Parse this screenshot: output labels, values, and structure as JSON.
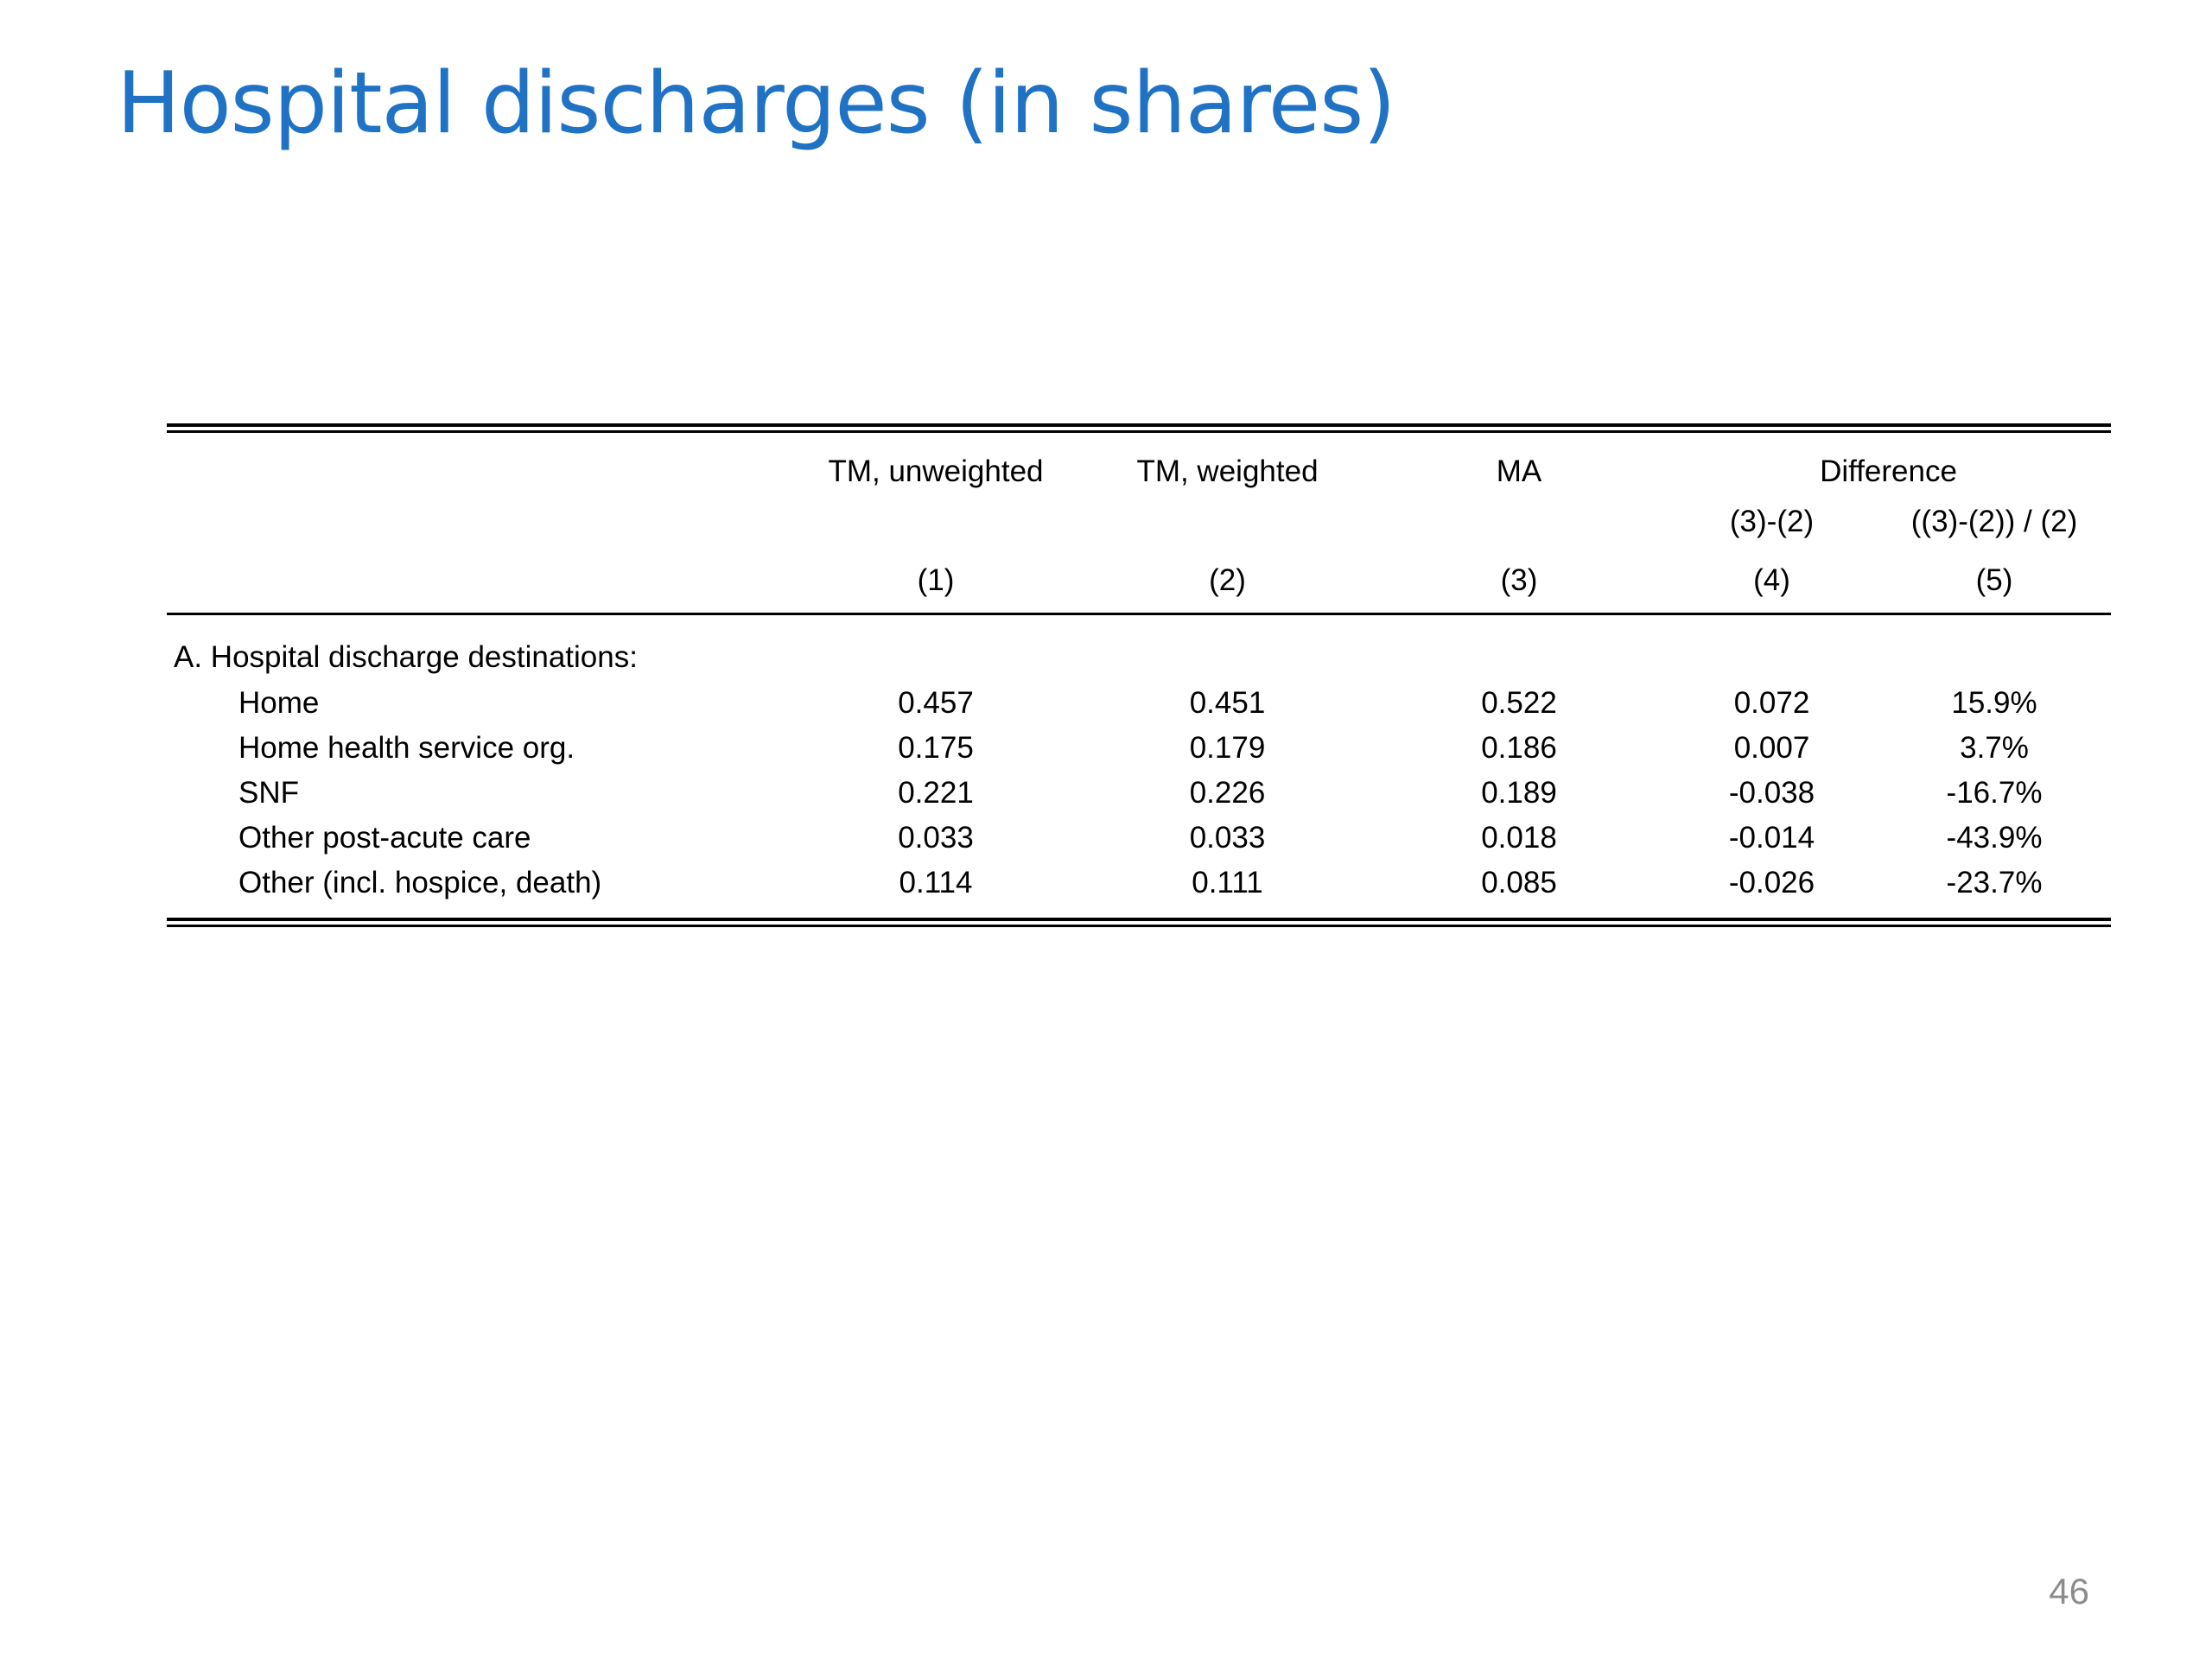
{
  "slide": {
    "title": "Hospital discharges (in shares)",
    "title_color": "#1f72c4",
    "page_number": "46",
    "page_number_color": "#8c8c8c"
  },
  "table": {
    "columns": {
      "col1": {
        "label": "TM, unweighted",
        "number": "(1)"
      },
      "col2": {
        "label": "TM, weighted",
        "number": "(2)"
      },
      "col3": {
        "label": "MA",
        "number": "(3)"
      },
      "difference_label": "Difference",
      "col4": {
        "formula": "(3)-(2)",
        "number": "(4)"
      },
      "col5": {
        "formula": "((3)-(2)) / (2)",
        "number": "(5)"
      }
    },
    "section_label": "A. Hospital discharge destinations:",
    "rows": [
      {
        "label": "Home",
        "c1": "0.457",
        "c2": "0.451",
        "c3": "0.522",
        "c4": "0.072",
        "c5": "15.9%"
      },
      {
        "label": "Home health service org.",
        "c1": "0.175",
        "c2": "0.179",
        "c3": "0.186",
        "c4": "0.007",
        "c5": "3.7%"
      },
      {
        "label": "SNF",
        "c1": "0.221",
        "c2": "0.226",
        "c3": "0.189",
        "c4": "-0.038",
        "c5": "-16.7%"
      },
      {
        "label": "Other post-acute care",
        "c1": "0.033",
        "c2": "0.033",
        "c3": "0.018",
        "c4": "-0.014",
        "c5": "-43.9%"
      },
      {
        "label": "Other (incl. hospice, death)",
        "c1": "0.114",
        "c2": "0.111",
        "c3": "0.085",
        "c4": "-0.026",
        "c5": "-23.7%"
      }
    ]
  }
}
